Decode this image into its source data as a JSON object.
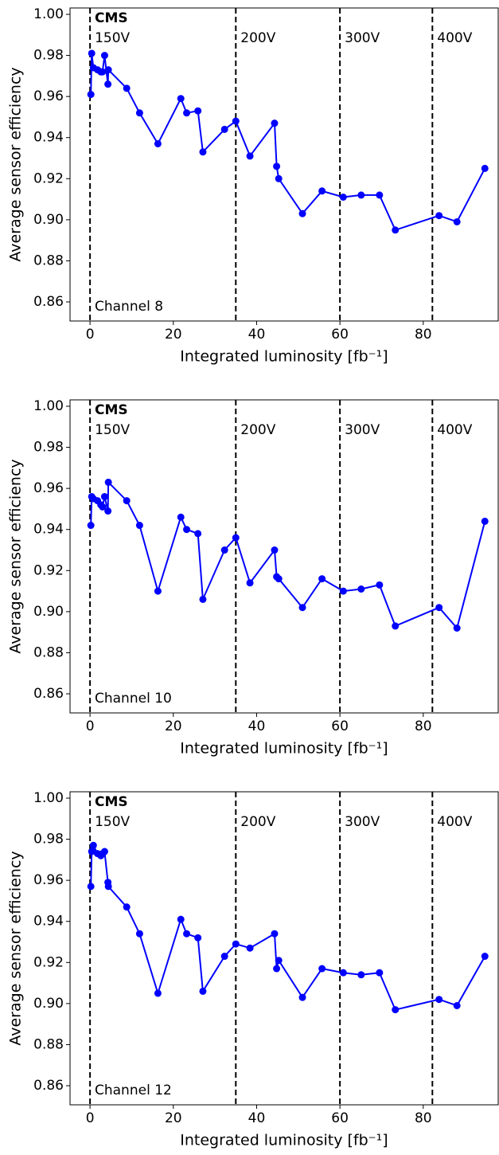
{
  "chart_data": [
    {
      "type": "line",
      "xlabel": "Integrated luminosity [fb⁻¹]",
      "ylabel": "Average sensor efficiency",
      "experiment": "CMS",
      "channel": "Channel 8",
      "color": "#0000ff",
      "x": [
        0.2,
        0.4,
        0.8,
        1.8,
        2.6,
        3.0,
        3.5,
        4.3,
        4.4,
        8.8,
        11.9,
        16.3,
        21.8,
        23.2,
        25.9,
        27.1,
        32.3,
        35.0,
        38.4,
        44.3,
        44.8,
        45.3,
        51.0,
        55.7,
        60.8,
        65.1,
        69.5,
        73.3,
        83.8,
        88.1,
        94.8
      ],
      "values": [
        0.961,
        0.981,
        0.974,
        0.973,
        0.972,
        0.972,
        0.98,
        0.966,
        0.973,
        0.964,
        0.952,
        0.937,
        0.959,
        0.952,
        0.953,
        0.933,
        0.944,
        0.948,
        0.931,
        0.947,
        0.926,
        0.92,
        0.903,
        0.914,
        0.911,
        0.912,
        0.912,
        0.895,
        0.902,
        0.899,
        0.925
      ],
      "vlines": [
        {
          "x": 0,
          "label": "150V"
        },
        {
          "x": 35,
          "label": "200V"
        },
        {
          "x": 60,
          "label": "300V"
        },
        {
          "x": 82.2,
          "label": "400V"
        }
      ],
      "xlim": [
        -4.8,
        98
      ],
      "ylim": [
        0.8507,
        1.0031
      ],
      "xticks": [
        0,
        20,
        40,
        60,
        80
      ],
      "yticks": [
        0.86,
        0.88,
        {
          "value": 0.9,
          "label": "0.90"
        },
        0.92,
        0.94,
        0.96,
        0.98,
        {
          "value": 1.0,
          "label": "1.00"
        }
      ]
    },
    {
      "type": "line",
      "xlabel": "Integrated luminosity [fb⁻¹]",
      "ylabel": "Average sensor efficiency",
      "experiment": "CMS",
      "channel": "Channel 10",
      "color": "#0000ff",
      "x": [
        0.2,
        0.4,
        0.8,
        1.8,
        2.6,
        3.0,
        3.5,
        4.3,
        4.4,
        8.8,
        11.9,
        16.3,
        21.8,
        23.2,
        25.9,
        27.1,
        32.3,
        35.0,
        38.4,
        44.3,
        44.8,
        45.3,
        51.0,
        55.7,
        60.8,
        65.1,
        69.5,
        73.3,
        83.8,
        88.1,
        94.8
      ],
      "values": [
        0.942,
        0.956,
        0.955,
        0.954,
        0.952,
        0.951,
        0.956,
        0.949,
        0.963,
        0.954,
        0.942,
        0.91,
        0.946,
        0.94,
        0.938,
        0.906,
        0.93,
        0.936,
        0.914,
        0.93,
        0.917,
        0.916,
        0.902,
        0.916,
        0.91,
        0.911,
        0.913,
        0.893,
        0.902,
        0.892,
        0.944
      ],
      "vlines": [
        {
          "x": 0,
          "label": "150V"
        },
        {
          "x": 35,
          "label": "200V"
        },
        {
          "x": 60,
          "label": "300V"
        },
        {
          "x": 82.2,
          "label": "400V"
        }
      ],
      "xlim": [
        -4.8,
        98
      ],
      "ylim": [
        0.8507,
        1.0031
      ],
      "xticks": [
        0,
        20,
        40,
        60,
        80
      ],
      "yticks": [
        0.86,
        0.88,
        {
          "value": 0.9,
          "label": "0.90"
        },
        0.92,
        0.94,
        0.96,
        0.98,
        {
          "value": 1.0,
          "label": "1.00"
        }
      ]
    },
    {
      "type": "line",
      "xlabel": "Integrated luminosity [fb⁻¹]",
      "ylabel": "Average sensor efficiency",
      "experiment": "CMS",
      "channel": "Channel 12",
      "color": "#0000ff",
      "x": [
        0.2,
        0.4,
        0.8,
        1.8,
        2.6,
        3.0,
        3.5,
        4.3,
        4.4,
        8.8,
        11.9,
        16.3,
        21.8,
        23.2,
        25.9,
        27.1,
        32.3,
        35.0,
        38.4,
        44.3,
        44.8,
        45.3,
        51.0,
        55.7,
        60.8,
        65.1,
        69.5,
        73.3,
        83.8,
        88.1,
        94.8
      ],
      "values": [
        0.957,
        0.974,
        0.977,
        0.973,
        0.972,
        0.973,
        0.974,
        0.959,
        0.957,
        0.947,
        0.934,
        0.905,
        0.941,
        0.934,
        0.932,
        0.906,
        0.923,
        0.929,
        0.927,
        0.934,
        0.917,
        0.921,
        0.903,
        0.917,
        0.915,
        0.914,
        0.915,
        0.897,
        0.902,
        0.899,
        0.923
      ],
      "vlines": [
        {
          "x": 0,
          "label": "150V"
        },
        {
          "x": 35,
          "label": "200V"
        },
        {
          "x": 60,
          "label": "300V"
        },
        {
          "x": 82.2,
          "label": "400V"
        }
      ],
      "xlim": [
        -4.8,
        98
      ],
      "ylim": [
        0.8507,
        1.0031
      ],
      "xticks": [
        0,
        20,
        40,
        60,
        80
      ],
      "yticks": [
        0.86,
        0.88,
        {
          "value": 0.9,
          "label": "0.90"
        },
        0.92,
        0.94,
        0.96,
        0.98,
        {
          "value": 1.0,
          "label": "1.00"
        }
      ]
    }
  ]
}
